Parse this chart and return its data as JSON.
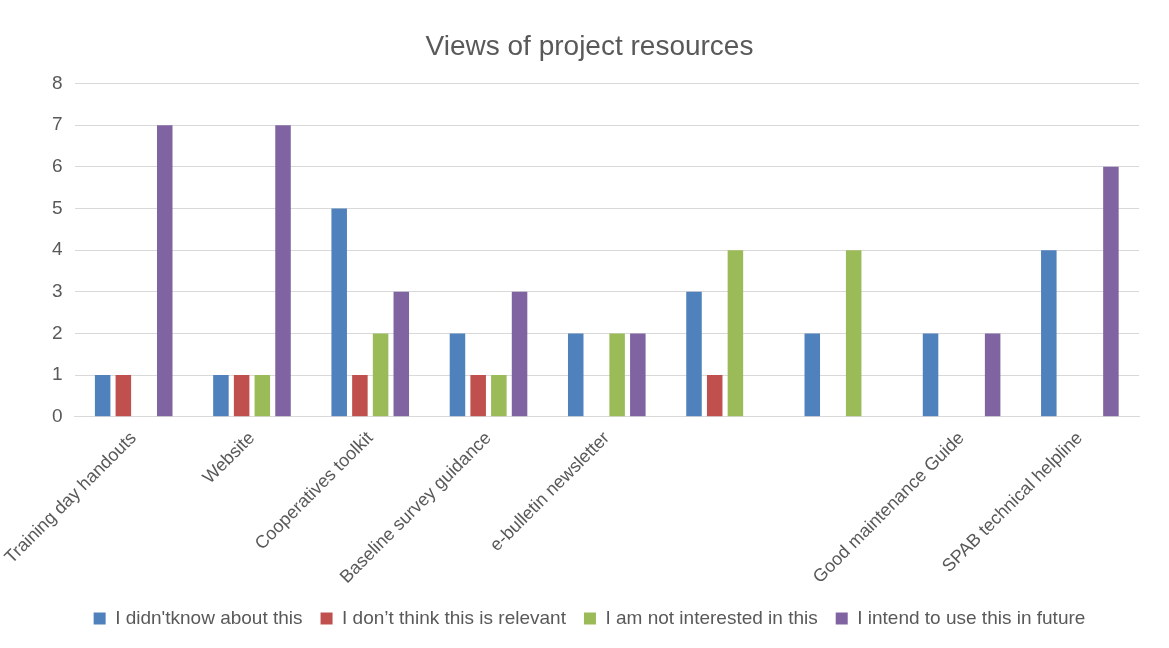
{
  "chart_data": {
    "type": "bar",
    "title": "Views of project resources",
    "categories": [
      "Training day handouts",
      "Website",
      "Cooperatives toolkit",
      "Baseline survey guidance",
      "e-bulletin newsletter",
      null,
      null,
      "Good maintenance Guide",
      "SPAB technical helpline"
    ],
    "series": [
      {
        "name": "I didn'tknow about this",
        "color": "#4f81bd",
        "values": [
          1,
          1,
          5,
          2,
          2,
          3,
          2,
          2,
          4
        ]
      },
      {
        "name": "I don’t think this is relevant",
        "color": "#c0504d",
        "values": [
          1,
          1,
          1,
          1,
          0,
          1,
          0,
          0,
          0
        ]
      },
      {
        "name": "I am not interested in this",
        "color": "#9bbb59",
        "values": [
          0,
          1,
          2,
          1,
          2,
          4,
          4,
          0,
          0
        ]
      },
      {
        "name": "I intend to use this in future",
        "color": "#8064a2",
        "values": [
          7,
          7,
          3,
          3,
          2,
          0,
          0,
          2,
          6
        ]
      }
    ],
    "ylim": [
      0,
      8
    ],
    "yticks": [
      0,
      1,
      2,
      3,
      4,
      5,
      6,
      7,
      8
    ],
    "grid": "y",
    "legend": "bottom"
  }
}
